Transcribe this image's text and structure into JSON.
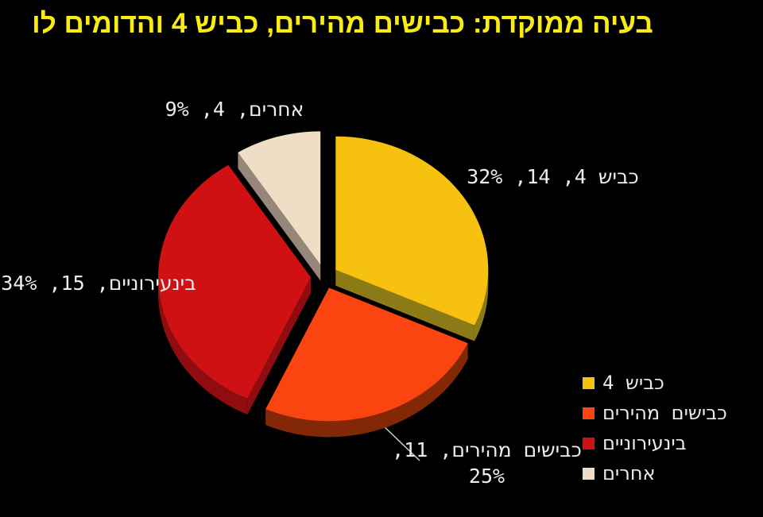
{
  "title": "בעיה ממוקדת: כבישים מהירים, כביש 4 והדומים לו",
  "colors": {
    "background": "#000000",
    "title": "#F8EC12",
    "data_label": "#EDEDED",
    "leader_line": "#C9C9C9"
  },
  "chart_data": {
    "type": "pie",
    "title": "בעיה ממוקדת: כבישים מהירים, כביש 4 והדומים לו",
    "effect": "3d-exploded",
    "direction": "clockwise",
    "start_at": "12-oclock",
    "total": 44,
    "slices": [
      {
        "label": "כביש 4",
        "value": 14,
        "percent": "32%",
        "data_label": "כביש 4, 14, 32%",
        "color": "#F6C20F",
        "side_color": "#8C7A16"
      },
      {
        "label": "כבישים מהירים",
        "value": 11,
        "percent": "25%",
        "data_label": "כבישים מהירים, 11, 25%",
        "color": "#FB4511",
        "side_color": "#832806"
      },
      {
        "label": "בינעירוניים",
        "value": 15,
        "percent": "34%",
        "data_label": "בינעירוניים, 15, 34%",
        "color": "#D01114",
        "side_color": "#8F0D10"
      },
      {
        "label": "אחרים",
        "value": 4,
        "percent": "9%",
        "data_label": "אחרים, 4, 9%",
        "color": "#EFDDC6",
        "side_color": "#95887A"
      }
    ],
    "legend": {
      "position": "bottom-right",
      "entries": [
        "כביש 4",
        "כבישים מהירים",
        "בינעירוניים",
        "אחרים"
      ]
    }
  }
}
